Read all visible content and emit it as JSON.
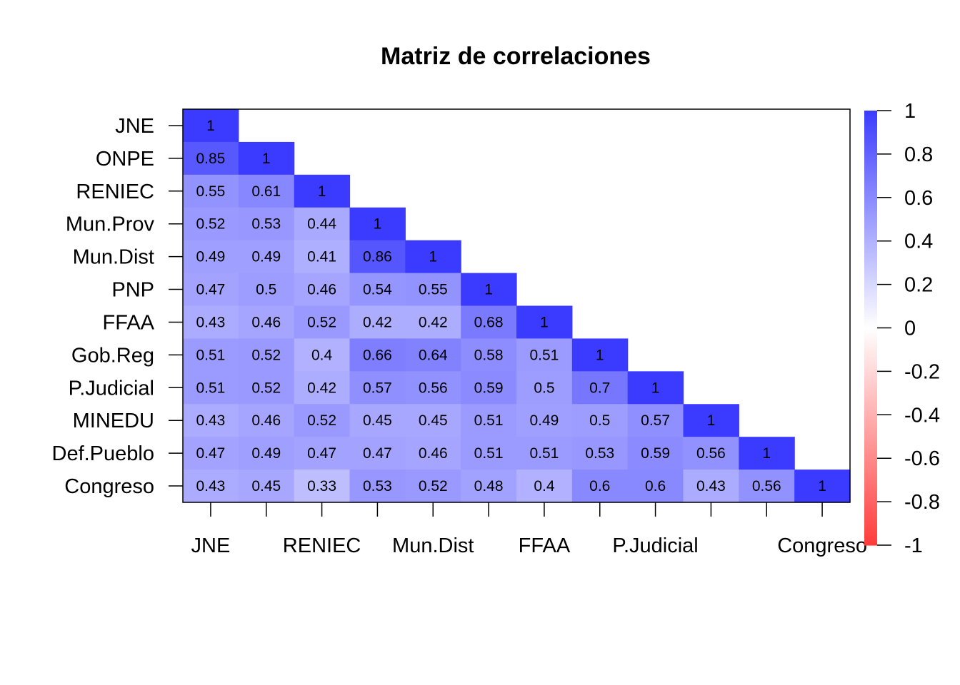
{
  "chart_data": {
    "type": "heatmap",
    "title": "Matriz de correlaciones",
    "variables": [
      "JNE",
      "ONPE",
      "RENIEC",
      "Mun.Prov",
      "Mun.Dist",
      "PNP",
      "FFAA",
      "Gob.Reg",
      "P.Judicial",
      "MINEDU",
      "Def.Pueblo",
      "Congreso"
    ],
    "x_tick_labels_shown": [
      "JNE",
      "RENIEC",
      "Mun.Dist",
      "FFAA",
      "P.Judicial",
      "Congreso"
    ],
    "lower_triangle_values": [
      [
        "1"
      ],
      [
        "0.85",
        "1"
      ],
      [
        "0.55",
        "0.61",
        "1"
      ],
      [
        "0.52",
        "0.53",
        "0.44",
        "1"
      ],
      [
        "0.49",
        "0.49",
        "0.41",
        "0.86",
        "1"
      ],
      [
        "0.47",
        "0.5",
        "0.46",
        "0.54",
        "0.55",
        "1"
      ],
      [
        "0.43",
        "0.46",
        "0.52",
        "0.42",
        "0.42",
        "0.68",
        "1"
      ],
      [
        "0.51",
        "0.52",
        "0.4",
        "0.66",
        "0.64",
        "0.58",
        "0.51",
        "1"
      ],
      [
        "0.51",
        "0.52",
        "0.42",
        "0.57",
        "0.56",
        "0.59",
        "0.5",
        "0.7",
        "1"
      ],
      [
        "0.43",
        "0.46",
        "0.52",
        "0.45",
        "0.45",
        "0.51",
        "0.49",
        "0.5",
        "0.57",
        "1"
      ],
      [
        "0.47",
        "0.49",
        "0.47",
        "0.47",
        "0.46",
        "0.51",
        "0.51",
        "0.53",
        "0.59",
        "0.56",
        "1"
      ],
      [
        "0.43",
        "0.45",
        "0.33",
        "0.53",
        "0.52",
        "0.48",
        "0.4",
        "0.6",
        "0.6",
        "0.43",
        "0.56",
        "1"
      ]
    ],
    "color_scale": {
      "range": [
        -1,
        1
      ],
      "low_color": "#ff3b3b",
      "mid_color": "#ffffff",
      "high_color": "#3b3bff",
      "tick_labels": [
        "1",
        "0.8",
        "0.6",
        "0.4",
        "0.2",
        "0",
        "-0.2",
        "-0.4",
        "-0.6",
        "-0.8",
        "-1"
      ]
    },
    "grid": false,
    "legend_position": "right"
  }
}
